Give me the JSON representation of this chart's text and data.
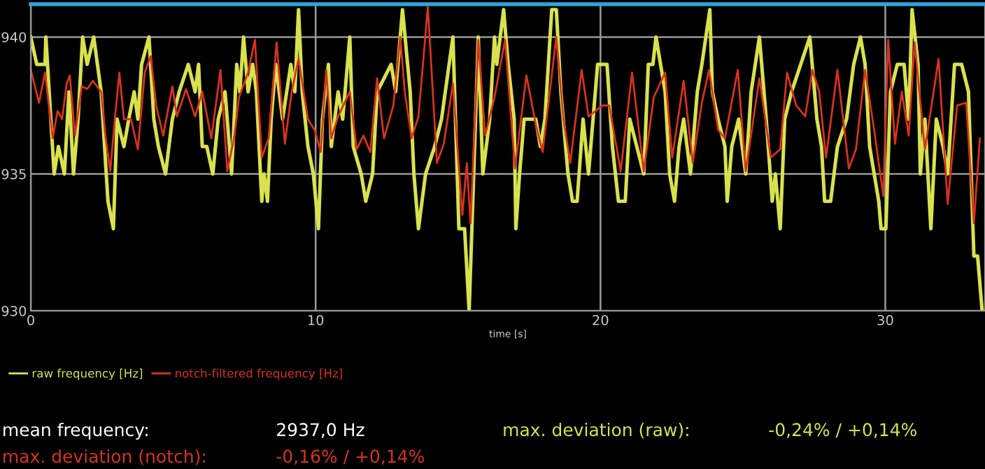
{
  "chart_data": {
    "type": "line",
    "xlabel": "time [s]",
    "xlim": [
      0,
      33.5
    ],
    "ylim": [
      930,
      941.2
    ],
    "xticks": [
      0,
      10,
      20,
      30
    ],
    "yticks": [
      930,
      935,
      940
    ],
    "grid": true,
    "legend": "bottom left",
    "series": [
      {
        "name": "raw frequency [Hz]",
        "color": "#d9e24c",
        "x": [
          0,
          0.21,
          0.5,
          0.53,
          0.82,
          0.97,
          1.18,
          1.34,
          1.5,
          1.66,
          1.82,
          1.98,
          2.21,
          2.47,
          2.71,
          2.9,
          3.03,
          3.27,
          3.44,
          3.63,
          3.76,
          3.89,
          4.15,
          4.32,
          4.48,
          4.73,
          4.97,
          5.21,
          5.53,
          5.77,
          5.89,
          6.02,
          6.18,
          6.39,
          6.58,
          6.82,
          7.05,
          7.23,
          7.34,
          7.47,
          7.63,
          7.79,
          7.92,
          8.11,
          8.19,
          8.31,
          8.44,
          8.6,
          8.84,
          9.13,
          9.27,
          9.4,
          9.53,
          9.73,
          9.92,
          10.1,
          10.24,
          10.45,
          10.55,
          10.79,
          10.95,
          11.2,
          11.32,
          11.6,
          11.76,
          12,
          12.16,
          12.65,
          12.81,
          13.05,
          13.32,
          13.45,
          13.61,
          13.86,
          14.18,
          14.42,
          14.82,
          15.03,
          15.23,
          15.39,
          15.55,
          15.71,
          15.87,
          16.11,
          16.28,
          16.36,
          16.6,
          16.76,
          16.97,
          17.03,
          17.16,
          17.32,
          17.73,
          17.89,
          18.05,
          18.29,
          18.45,
          18.61,
          18.86,
          19.02,
          19.18,
          19.39,
          19.58,
          19.9,
          20.23,
          20.42,
          20.63,
          20.87,
          21.03,
          21.52,
          21.68,
          21.84,
          21.95,
          22.11,
          22.27,
          22.43,
          22.6,
          22.76,
          22.92,
          23.16,
          23.4,
          23.56,
          23.84,
          23.93,
          24.13,
          24.37,
          24.45,
          24.61,
          24.85,
          25.1,
          25.29,
          25.58,
          25.82,
          26.03,
          26.14,
          26.31,
          26.47,
          26.71,
          27.03,
          27.35,
          27.6,
          27.76,
          27.87,
          28.08,
          28.32,
          28.64,
          28.89,
          29.13,
          29.29,
          29.45,
          29.61,
          29.77,
          29.85,
          30.02,
          30.18,
          30.42,
          30.66,
          30.82,
          30.94,
          31.15,
          31.23,
          31.39,
          31.6,
          31.79,
          32.03,
          32.19,
          32.43,
          32.68,
          32.92,
          33.11,
          33.24,
          33.4
        ],
        "values": [
          940,
          939,
          939,
          940,
          935,
          936,
          935,
          938,
          935,
          937,
          940,
          939,
          940,
          938,
          934,
          933,
          937,
          936,
          937,
          938,
          937,
          939,
          940,
          937,
          936,
          935,
          937,
          938,
          939,
          938,
          939,
          936,
          936,
          935,
          937,
          938,
          935,
          939,
          938,
          940,
          938,
          939,
          938,
          934,
          935,
          934,
          937,
          939,
          937,
          939,
          938,
          941,
          938,
          936,
          935,
          933,
          937,
          939,
          936,
          938,
          937,
          940,
          936,
          935,
          934,
          935,
          938,
          939,
          938,
          941,
          938,
          935,
          933,
          935,
          936,
          937,
          940,
          933,
          933,
          930,
          935,
          940,
          935,
          937,
          940,
          939,
          941,
          939,
          937,
          933,
          935,
          937,
          937,
          936,
          937,
          941,
          941,
          938,
          935,
          934,
          934,
          937,
          935,
          939,
          939,
          936,
          934,
          934,
          937,
          935,
          939,
          939,
          940,
          939,
          938,
          935,
          934,
          936,
          937,
          935,
          938,
          939,
          941,
          938,
          937,
          936,
          934,
          936,
          937,
          935,
          938,
          940,
          937,
          934,
          935,
          933,
          937,
          938,
          939,
          940,
          937,
          936,
          934,
          934,
          936,
          937,
          939,
          940,
          939,
          936,
          935,
          934,
          933,
          933,
          938,
          939,
          939,
          937,
          941,
          939,
          935,
          937,
          933,
          937,
          936,
          935,
          939,
          939,
          938,
          932,
          932,
          930
        ]
      },
      {
        "name": "notch-filtered frequency [Hz]",
        "color": "#d8321c",
        "x": [
          0,
          0.29,
          0.5,
          0.77,
          0.94,
          1.1,
          1.26,
          1.37,
          1.55,
          1.79,
          1.98,
          2.18,
          2.47,
          2.63,
          2.79,
          2.95,
          3.11,
          3.27,
          3.52,
          3.76,
          4,
          4.21,
          4.4,
          4.65,
          4.97,
          5.13,
          5.45,
          5.77,
          6.02,
          6.34,
          6.66,
          6.9,
          7.15,
          7.31,
          7.63,
          7.87,
          8.11,
          8.35,
          8.63,
          8.92,
          9.16,
          9.4,
          9.73,
          9.97,
          10.18,
          10.37,
          10.55,
          10.79,
          11.2,
          11.44,
          11.68,
          11.92,
          12.16,
          12.4,
          12.73,
          12.97,
          13.13,
          13.37,
          13.61,
          13.94,
          14.26,
          14.5,
          14.82,
          15.15,
          15.31,
          15.44,
          15.71,
          15.95,
          16.28,
          16.65,
          17,
          17.4,
          17.73,
          17.97,
          18.45,
          18.7,
          18.94,
          19.34,
          19.58,
          20.07,
          20.31,
          20.71,
          21.11,
          21.52,
          21.87,
          22.27,
          22.52,
          22.92,
          23.24,
          23.56,
          23.81,
          24.13,
          24.37,
          24.82,
          25.1,
          25.58,
          25.98,
          26.31,
          26.55,
          26.87,
          27.19,
          27.44,
          27.68,
          27.92,
          28.32,
          28.72,
          28.97,
          29.29,
          29.61,
          29.93,
          30.1,
          30.34,
          30.58,
          30.82,
          31.03,
          31.39,
          31.87,
          32.19,
          32.52,
          32.84,
          33.11,
          33.32
        ],
        "values": [
          938.8,
          937.6,
          938.7,
          936.3,
          937.3,
          937,
          938.3,
          938.6,
          936.4,
          938.2,
          938.1,
          938.4,
          938,
          936.3,
          935.1,
          937,
          938.7,
          937,
          937,
          935.9,
          938.7,
          939.3,
          937.5,
          936.4,
          938.2,
          937.1,
          938.1,
          937.1,
          938,
          936.3,
          938.8,
          935.1,
          936.4,
          937.8,
          938.7,
          939.9,
          935.6,
          936.3,
          939.8,
          936.1,
          938,
          939.2,
          937,
          936.6,
          935.8,
          938.8,
          936.3,
          937.1,
          938,
          935.9,
          936.4,
          935.8,
          938.5,
          936.3,
          937.5,
          940,
          938,
          936.3,
          937.1,
          941.1,
          935.4,
          936.1,
          938.3,
          933.5,
          935.4,
          933.2,
          939.9,
          936.4,
          937.8,
          939.9,
          935.2,
          938.6,
          936.8,
          935.8,
          940,
          937,
          935.4,
          938.8,
          937.1,
          937.5,
          937.5,
          935.1,
          938.7,
          935.1,
          937.8,
          938.7,
          935.6,
          938.4,
          935.4,
          937.6,
          938.8,
          936.6,
          936.3,
          938.8,
          935.1,
          938.5,
          935.6,
          935.9,
          938.7,
          937.5,
          937.1,
          938.8,
          938,
          935.6,
          938.8,
          935.2,
          935.9,
          938.8,
          936.6,
          934.2,
          939.9,
          936.1,
          938,
          936.4,
          939.8,
          935.9,
          939.2,
          933.9,
          937.5,
          937.6,
          933.2,
          936.3
        ]
      }
    ],
    "annotations": [
      "mean frequency:",
      "2937,0 Hz",
      "max. deviation (raw):",
      "-0,24% / +0,14%",
      "max. deviation (notch):",
      "-0,16% / +0,14%"
    ]
  }
}
